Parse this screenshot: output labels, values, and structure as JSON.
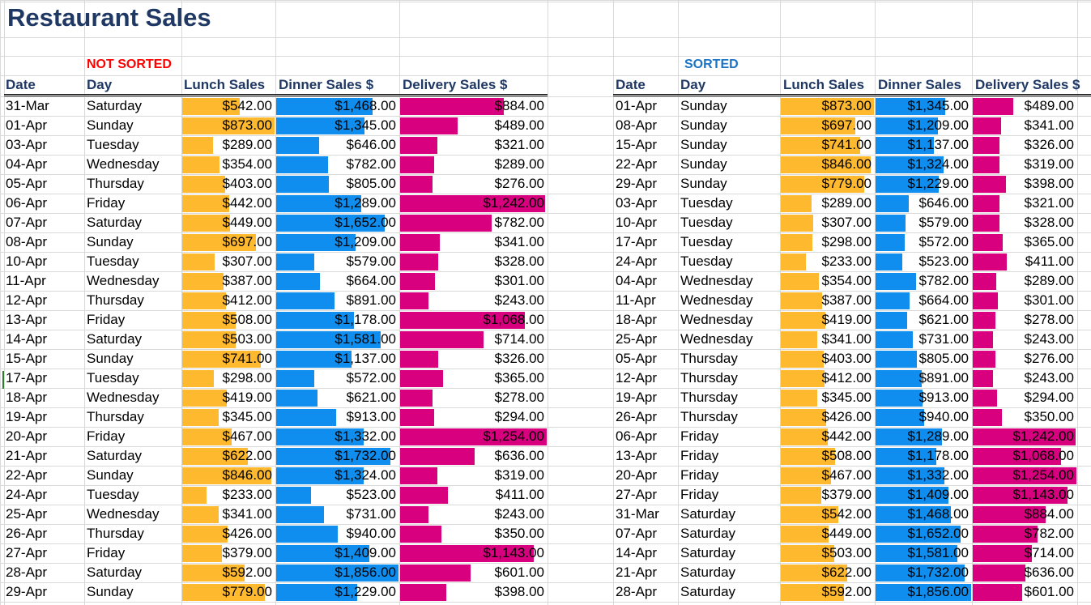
{
  "title": "Restaurant Sales",
  "labels": {
    "unsorted": "NOT SORTED",
    "sorted": "SORTED"
  },
  "headers": {
    "date": "Date",
    "day": "Day",
    "lunch": "Lunch Sales",
    "dinner": "Dinner Sales $",
    "delivery": "Delivery Sales $",
    "dinner_sorted": "Dinner Sales",
    "delivery_sorted": "Delivery Sales $"
  },
  "colors": {
    "lunch": "#ffb92e",
    "dinner": "#0f8ef0",
    "delivery": "#d8007f",
    "title": "#1f3864"
  },
  "databar_max": {
    "lunch": 873,
    "dinner": 1856,
    "delivery": 1254
  },
  "unsorted": [
    {
      "date": "31-Mar",
      "day": "Saturday",
      "lunch": "$542.00",
      "dinner": "$1,468.00",
      "delivery": "$884.00",
      "l": 542,
      "d": 1468,
      "v": 884
    },
    {
      "date": "01-Apr",
      "day": "Sunday",
      "lunch": "$873.00",
      "dinner": "$1,345.00",
      "delivery": "$489.00",
      "l": 873,
      "d": 1345,
      "v": 489
    },
    {
      "date": "03-Apr",
      "day": "Tuesday",
      "lunch": "$289.00",
      "dinner": "$646.00",
      "delivery": "$321.00",
      "l": 289,
      "d": 646,
      "v": 321
    },
    {
      "date": "04-Apr",
      "day": "Wednesday",
      "lunch": "$354.00",
      "dinner": "$782.00",
      "delivery": "$289.00",
      "l": 354,
      "d": 782,
      "v": 289
    },
    {
      "date": "05-Apr",
      "day": "Thursday",
      "lunch": "$403.00",
      "dinner": "$805.00",
      "delivery": "$276.00",
      "l": 403,
      "d": 805,
      "v": 276
    },
    {
      "date": "06-Apr",
      "day": "Friday",
      "lunch": "$442.00",
      "dinner": "$1,289.00",
      "delivery": "$1,242.00",
      "l": 442,
      "d": 1289,
      "v": 1242
    },
    {
      "date": "07-Apr",
      "day": "Saturday",
      "lunch": "$449.00",
      "dinner": "$1,652.00",
      "delivery": "$782.00",
      "l": 449,
      "d": 1652,
      "v": 782
    },
    {
      "date": "08-Apr",
      "day": "Sunday",
      "lunch": "$697.00",
      "dinner": "$1,209.00",
      "delivery": "$341.00",
      "l": 697,
      "d": 1209,
      "v": 341
    },
    {
      "date": "10-Apr",
      "day": "Tuesday",
      "lunch": "$307.00",
      "dinner": "$579.00",
      "delivery": "$328.00",
      "l": 307,
      "d": 579,
      "v": 328
    },
    {
      "date": "11-Apr",
      "day": "Wednesday",
      "lunch": "$387.00",
      "dinner": "$664.00",
      "delivery": "$301.00",
      "l": 387,
      "d": 664,
      "v": 301
    },
    {
      "date": "12-Apr",
      "day": "Thursday",
      "lunch": "$412.00",
      "dinner": "$891.00",
      "delivery": "$243.00",
      "l": 412,
      "d": 891,
      "v": 243
    },
    {
      "date": "13-Apr",
      "day": "Friday",
      "lunch": "$508.00",
      "dinner": "$1,178.00",
      "delivery": "$1,068.00",
      "l": 508,
      "d": 1178,
      "v": 1068
    },
    {
      "date": "14-Apr",
      "day": "Saturday",
      "lunch": "$503.00",
      "dinner": "$1,581.00",
      "delivery": "$714.00",
      "l": 503,
      "d": 1581,
      "v": 714
    },
    {
      "date": "15-Apr",
      "day": "Sunday",
      "lunch": "$741.00",
      "dinner": "$1,137.00",
      "delivery": "$326.00",
      "l": 741,
      "d": 1137,
      "v": 326
    },
    {
      "date": "17-Apr",
      "day": "Tuesday",
      "lunch": "$298.00",
      "dinner": "$572.00",
      "delivery": "$365.00",
      "l": 298,
      "d": 572,
      "v": 365
    },
    {
      "date": "18-Apr",
      "day": "Wednesday",
      "lunch": "$419.00",
      "dinner": "$621.00",
      "delivery": "$278.00",
      "l": 419,
      "d": 621,
      "v": 278
    },
    {
      "date": "19-Apr",
      "day": "Thursday",
      "lunch": "$345.00",
      "dinner": "$913.00",
      "delivery": "$294.00",
      "l": 345,
      "d": 913,
      "v": 294
    },
    {
      "date": "20-Apr",
      "day": "Friday",
      "lunch": "$467.00",
      "dinner": "$1,332.00",
      "delivery": "$1,254.00",
      "l": 467,
      "d": 1332,
      "v": 1254
    },
    {
      "date": "21-Apr",
      "day": "Saturday",
      "lunch": "$622.00",
      "dinner": "$1,732.00",
      "delivery": "$636.00",
      "l": 622,
      "d": 1732,
      "v": 636
    },
    {
      "date": "22-Apr",
      "day": "Sunday",
      "lunch": "$846.00",
      "dinner": "$1,324.00",
      "delivery": "$319.00",
      "l": 846,
      "d": 1324,
      "v": 319
    },
    {
      "date": "24-Apr",
      "day": "Tuesday",
      "lunch": "$233.00",
      "dinner": "$523.00",
      "delivery": "$411.00",
      "l": 233,
      "d": 523,
      "v": 411
    },
    {
      "date": "25-Apr",
      "day": "Wednesday",
      "lunch": "$341.00",
      "dinner": "$731.00",
      "delivery": "$243.00",
      "l": 341,
      "d": 731,
      "v": 243
    },
    {
      "date": "26-Apr",
      "day": "Thursday",
      "lunch": "$426.00",
      "dinner": "$940.00",
      "delivery": "$350.00",
      "l": 426,
      "d": 940,
      "v": 350
    },
    {
      "date": "27-Apr",
      "day": "Friday",
      "lunch": "$379.00",
      "dinner": "$1,409.00",
      "delivery": "$1,143.00",
      "l": 379,
      "d": 1409,
      "v": 1143
    },
    {
      "date": "28-Apr",
      "day": "Saturday",
      "lunch": "$592.00",
      "dinner": "$1,856.00",
      "delivery": "$601.00",
      "l": 592,
      "d": 1856,
      "v": 601
    },
    {
      "date": "29-Apr",
      "day": "Sunday",
      "lunch": "$779.00",
      "dinner": "$1,229.00",
      "delivery": "$398.00",
      "l": 779,
      "d": 1229,
      "v": 398
    }
  ],
  "sorted": [
    {
      "date": "01-Apr",
      "day": "Sunday",
      "lunch": "$873.00",
      "dinner": "$1,345.00",
      "delivery": "$489.00",
      "l": 873,
      "d": 1345,
      "v": 489
    },
    {
      "date": "08-Apr",
      "day": "Sunday",
      "lunch": "$697.00",
      "dinner": "$1,209.00",
      "delivery": "$341.00",
      "l": 697,
      "d": 1209,
      "v": 341
    },
    {
      "date": "15-Apr",
      "day": "Sunday",
      "lunch": "$741.00",
      "dinner": "$1,137.00",
      "delivery": "$326.00",
      "l": 741,
      "d": 1137,
      "v": 326
    },
    {
      "date": "22-Apr",
      "day": "Sunday",
      "lunch": "$846.00",
      "dinner": "$1,324.00",
      "delivery": "$319.00",
      "l": 846,
      "d": 1324,
      "v": 319
    },
    {
      "date": "29-Apr",
      "day": "Sunday",
      "lunch": "$779.00",
      "dinner": "$1,229.00",
      "delivery": "$398.00",
      "l": 779,
      "d": 1229,
      "v": 398
    },
    {
      "date": "03-Apr",
      "day": "Tuesday",
      "lunch": "$289.00",
      "dinner": "$646.00",
      "delivery": "$321.00",
      "l": 289,
      "d": 646,
      "v": 321
    },
    {
      "date": "10-Apr",
      "day": "Tuesday",
      "lunch": "$307.00",
      "dinner": "$579.00",
      "delivery": "$328.00",
      "l": 307,
      "d": 579,
      "v": 328
    },
    {
      "date": "17-Apr",
      "day": "Tuesday",
      "lunch": "$298.00",
      "dinner": "$572.00",
      "delivery": "$365.00",
      "l": 298,
      "d": 572,
      "v": 365
    },
    {
      "date": "24-Apr",
      "day": "Tuesday",
      "lunch": "$233.00",
      "dinner": "$523.00",
      "delivery": "$411.00",
      "l": 233,
      "d": 523,
      "v": 411
    },
    {
      "date": "04-Apr",
      "day": "Wednesday",
      "lunch": "$354.00",
      "dinner": "$782.00",
      "delivery": "$289.00",
      "l": 354,
      "d": 782,
      "v": 289
    },
    {
      "date": "11-Apr",
      "day": "Wednesday",
      "lunch": "$387.00",
      "dinner": "$664.00",
      "delivery": "$301.00",
      "l": 387,
      "d": 664,
      "v": 301
    },
    {
      "date": "18-Apr",
      "day": "Wednesday",
      "lunch": "$419.00",
      "dinner": "$621.00",
      "delivery": "$278.00",
      "l": 419,
      "d": 621,
      "v": 278
    },
    {
      "date": "25-Apr",
      "day": "Wednesday",
      "lunch": "$341.00",
      "dinner": "$731.00",
      "delivery": "$243.00",
      "l": 341,
      "d": 731,
      "v": 243
    },
    {
      "date": "05-Apr",
      "day": "Thursday",
      "lunch": "$403.00",
      "dinner": "$805.00",
      "delivery": "$276.00",
      "l": 403,
      "d": 805,
      "v": 276
    },
    {
      "date": "12-Apr",
      "day": "Thursday",
      "lunch": "$412.00",
      "dinner": "$891.00",
      "delivery": "$243.00",
      "l": 412,
      "d": 891,
      "v": 243
    },
    {
      "date": "19-Apr",
      "day": "Thursday",
      "lunch": "$345.00",
      "dinner": "$913.00",
      "delivery": "$294.00",
      "l": 345,
      "d": 913,
      "v": 294
    },
    {
      "date": "26-Apr",
      "day": "Thursday",
      "lunch": "$426.00",
      "dinner": "$940.00",
      "delivery": "$350.00",
      "l": 426,
      "d": 940,
      "v": 350
    },
    {
      "date": "06-Apr",
      "day": "Friday",
      "lunch": "$442.00",
      "dinner": "$1,289.00",
      "delivery": "$1,242.00",
      "l": 442,
      "d": 1289,
      "v": 1242
    },
    {
      "date": "13-Apr",
      "day": "Friday",
      "lunch": "$508.00",
      "dinner": "$1,178.00",
      "delivery": "$1,068.00",
      "l": 508,
      "d": 1178,
      "v": 1068
    },
    {
      "date": "20-Apr",
      "day": "Friday",
      "lunch": "$467.00",
      "dinner": "$1,332.00",
      "delivery": "$1,254.00",
      "l": 467,
      "d": 1332,
      "v": 1254
    },
    {
      "date": "27-Apr",
      "day": "Friday",
      "lunch": "$379.00",
      "dinner": "$1,409.00",
      "delivery": "$1,143.00",
      "l": 379,
      "d": 1409,
      "v": 1143
    },
    {
      "date": "31-Mar",
      "day": "Saturday",
      "lunch": "$542.00",
      "dinner": "$1,468.00",
      "delivery": "$884.00",
      "l": 542,
      "d": 1468,
      "v": 884
    },
    {
      "date": "07-Apr",
      "day": "Saturday",
      "lunch": "$449.00",
      "dinner": "$1,652.00",
      "delivery": "$782.00",
      "l": 449,
      "d": 1652,
      "v": 782
    },
    {
      "date": "14-Apr",
      "day": "Saturday",
      "lunch": "$503.00",
      "dinner": "$1,581.00",
      "delivery": "$714.00",
      "l": 503,
      "d": 1581,
      "v": 714
    },
    {
      "date": "21-Apr",
      "day": "Saturday",
      "lunch": "$622.00",
      "dinner": "$1,732.00",
      "delivery": "$636.00",
      "l": 622,
      "d": 1732,
      "v": 636
    },
    {
      "date": "28-Apr",
      "day": "Saturday",
      "lunch": "$592.00",
      "dinner": "$1,856.00",
      "delivery": "$601.00",
      "l": 592,
      "d": 1856,
      "v": 601
    }
  ]
}
